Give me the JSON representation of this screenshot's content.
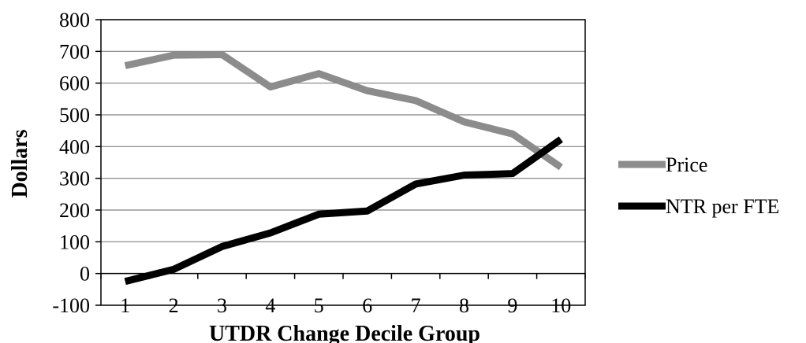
{
  "chart_data": {
    "type": "line",
    "title": "",
    "xlabel": "UTDR Change Decile Group",
    "ylabel": "Dollars",
    "categories": [
      "1",
      "2",
      "3",
      "4",
      "5",
      "6",
      "7",
      "8",
      "9",
      "10"
    ],
    "ylim": [
      -100,
      800
    ],
    "yticks": [
      -100,
      0,
      100,
      200,
      300,
      400,
      500,
      600,
      700,
      800
    ],
    "grid": true,
    "legend_position": "right",
    "series": [
      {
        "name": "Price",
        "color": "#8c8c8c",
        "values": [
          655,
          688,
          690,
          588,
          630,
          576,
          545,
          478,
          440,
          335
        ]
      },
      {
        "name": "NTR per FTE",
        "color": "#000000",
        "values": [
          -25,
          13,
          85,
          128,
          187,
          197,
          282,
          310,
          315,
          423
        ]
      }
    ]
  }
}
